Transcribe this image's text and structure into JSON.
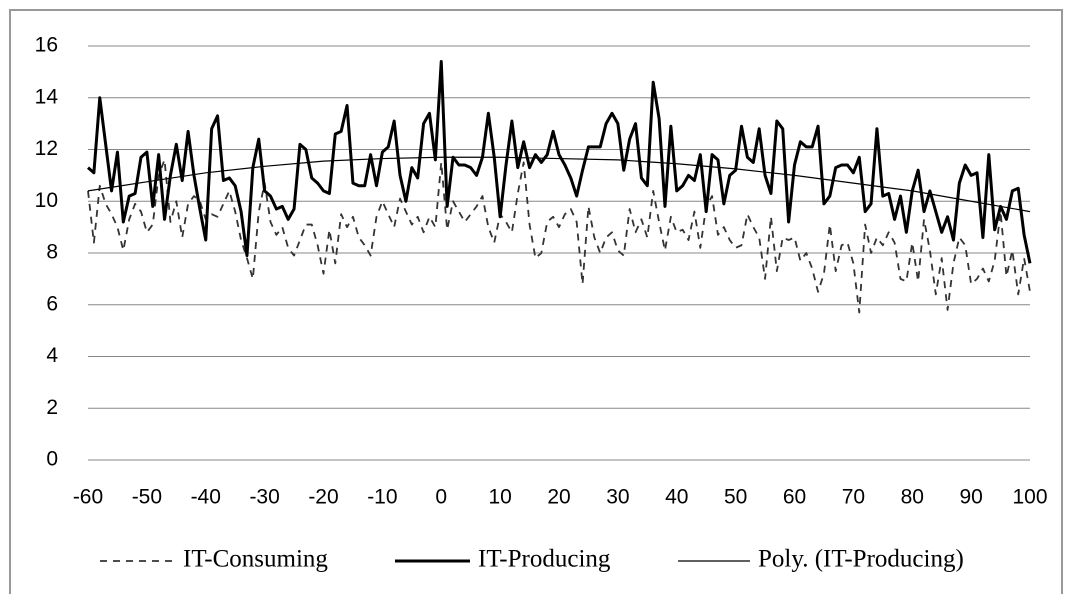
{
  "chart_data": {
    "type": "line",
    "x": [
      -60,
      -59,
      -58,
      -57,
      -56,
      -55,
      -54,
      -53,
      -52,
      -51,
      -50,
      -49,
      -48,
      -47,
      -46,
      -45,
      -44,
      -43,
      -42,
      -41,
      -40,
      -39,
      -38,
      -37,
      -36,
      -35,
      -34,
      -33,
      -32,
      -31,
      -30,
      -29,
      -28,
      -27,
      -26,
      -25,
      -24,
      -23,
      -22,
      -21,
      -20,
      -19,
      -18,
      -17,
      -16,
      -15,
      -14,
      -13,
      -12,
      -11,
      -10,
      -9,
      -8,
      -7,
      -6,
      -5,
      -4,
      -3,
      -2,
      -1,
      0,
      1,
      2,
      3,
      4,
      5,
      6,
      7,
      8,
      9,
      10,
      11,
      12,
      13,
      14,
      15,
      16,
      17,
      18,
      19,
      20,
      21,
      22,
      23,
      24,
      25,
      26,
      27,
      28,
      29,
      30,
      31,
      32,
      33,
      34,
      35,
      36,
      37,
      38,
      39,
      40,
      41,
      42,
      43,
      44,
      45,
      46,
      47,
      48,
      49,
      50,
      51,
      52,
      53,
      54,
      55,
      56,
      57,
      58,
      59,
      60,
      61,
      62,
      63,
      64,
      65,
      66,
      67,
      68,
      69,
      70,
      71,
      72,
      73,
      74,
      75,
      76,
      77,
      78,
      79,
      80,
      81,
      82,
      83,
      84,
      85,
      86,
      87,
      88,
      89,
      90,
      91,
      92,
      93,
      94,
      95,
      96,
      97,
      98,
      99,
      100
    ],
    "series": [
      {
        "name": "IT-Consuming",
        "color": "#333333",
        "style": "dashed",
        "width": 1.8,
        "values": [
          10.4,
          8.4,
          10.6,
          9.9,
          9.5,
          9.0,
          8.1,
          9.3,
          9.9,
          9.6,
          8.8,
          9.1,
          11.0,
          11.6,
          9.2,
          10.0,
          8.6,
          9.9,
          10.2,
          10.0,
          9.3,
          9.5,
          9.4,
          9.9,
          10.4,
          9.6,
          8.5,
          7.8,
          7.0,
          9.6,
          10.7,
          9.2,
          8.7,
          9.0,
          8.2,
          7.9,
          8.5,
          9.1,
          9.1,
          8.3,
          7.2,
          8.9,
          7.6,
          9.5,
          9.0,
          9.4,
          8.6,
          8.3,
          7.9,
          9.4,
          10.0,
          9.5,
          9.0,
          10.1,
          9.6,
          9.1,
          9.4,
          8.8,
          9.4,
          9.0,
          11.5,
          8.9,
          10.0,
          9.6,
          9.2,
          9.5,
          9.8,
          10.2,
          9.0,
          8.4,
          9.5,
          9.2,
          8.8,
          10.3,
          11.5,
          9.1,
          7.8,
          8.0,
          9.2,
          9.4,
          9.0,
          9.5,
          9.7,
          9.2,
          6.8,
          9.8,
          8.6,
          8.0,
          8.6,
          8.8,
          8.1,
          7.9,
          9.7,
          8.8,
          9.3,
          8.6,
          10.4,
          9.2,
          8.1,
          9.4,
          8.8,
          8.9,
          8.5,
          9.6,
          8.2,
          9.8,
          10.2,
          8.7,
          9.0,
          8.5,
          8.2,
          8.3,
          9.5,
          9.0,
          8.6,
          7.0,
          9.4,
          7.3,
          8.6,
          8.5,
          8.6,
          7.7,
          8.0,
          7.4,
          6.5,
          7.2,
          9.1,
          7.3,
          8.3,
          8.4,
          7.6,
          5.7,
          9.1,
          8.0,
          8.6,
          8.3,
          8.8,
          8.4,
          7.0,
          6.9,
          8.4,
          6.9,
          9.3,
          8.1,
          6.4,
          7.8,
          5.8,
          7.6,
          8.6,
          8.3,
          6.8,
          7.0,
          7.4,
          6.9,
          7.7,
          9.6,
          7.1,
          8.1,
          6.4,
          7.8,
          6.5
        ]
      },
      {
        "name": "IT-Producing",
        "color": "#000000",
        "style": "solid",
        "width": 3,
        "values": [
          11.3,
          11.1,
          14.0,
          12.2,
          10.4,
          11.9,
          9.2,
          10.2,
          10.3,
          11.7,
          11.9,
          9.8,
          11.8,
          9.3,
          11.0,
          12.2,
          10.8,
          12.7,
          11.0,
          9.7,
          8.5,
          12.8,
          13.3,
          10.8,
          10.9,
          10.6,
          9.6,
          7.9,
          11.3,
          12.4,
          10.4,
          10.2,
          9.7,
          9.8,
          9.3,
          9.7,
          12.2,
          12.0,
          10.9,
          10.7,
          10.4,
          10.3,
          12.6,
          12.7,
          13.7,
          10.7,
          10.6,
          10.6,
          11.8,
          10.6,
          11.9,
          12.1,
          13.1,
          11.0,
          10.0,
          11.3,
          10.9,
          13.0,
          13.4,
          11.6,
          15.4,
          9.8,
          11.7,
          11.4,
          11.4,
          11.3,
          11.0,
          11.7,
          13.4,
          11.7,
          9.4,
          11.4,
          13.1,
          11.3,
          12.3,
          11.3,
          11.8,
          11.5,
          11.8,
          12.7,
          11.8,
          11.4,
          10.9,
          10.2,
          11.2,
          12.1,
          12.1,
          12.1,
          13.0,
          13.4,
          13.0,
          11.2,
          12.4,
          13.0,
          10.9,
          10.6,
          14.6,
          13.2,
          9.8,
          12.9,
          10.4,
          10.6,
          11.0,
          10.8,
          11.8,
          9.6,
          11.8,
          11.6,
          9.9,
          11.0,
          11.2,
          12.9,
          11.7,
          11.5,
          12.8,
          11.0,
          10.3,
          13.1,
          12.8,
          9.2,
          11.4,
          12.3,
          12.1,
          12.1,
          12.9,
          9.9,
          10.2,
          11.3,
          11.4,
          11.4,
          11.1,
          11.7,
          9.6,
          9.9,
          12.8,
          10.2,
          10.3,
          9.3,
          10.2,
          8.8,
          10.4,
          11.2,
          9.6,
          10.4,
          9.6,
          8.8,
          9.4,
          8.5,
          10.7,
          11.4,
          11.0,
          11.1,
          8.6,
          11.8,
          8.9,
          9.8,
          9.3,
          10.4,
          10.5,
          8.7,
          7.6
        ]
      },
      {
        "name": "Poly. (IT-Producing)",
        "color": "#000000",
        "style": "solid",
        "width": 1.2,
        "x": [
          -60,
          -50,
          -40,
          -30,
          -20,
          -10,
          0,
          10,
          20,
          30,
          40,
          50,
          60,
          70,
          80,
          90,
          100
        ],
        "values": [
          10.4,
          10.75,
          11.1,
          11.35,
          11.55,
          11.65,
          11.7,
          11.7,
          11.65,
          11.6,
          11.45,
          11.25,
          11.0,
          10.7,
          10.4,
          10.0,
          9.6
        ]
      }
    ],
    "xlim": [
      -60,
      100
    ],
    "xticks": [
      -60,
      -50,
      -40,
      -30,
      -20,
      -10,
      0,
      10,
      20,
      30,
      40,
      50,
      60,
      70,
      80,
      90,
      100
    ],
    "ylim": [
      0,
      16
    ],
    "yticks": [
      0,
      2,
      4,
      6,
      8,
      10,
      12,
      14,
      16
    ],
    "grid": true,
    "legend": "bottom"
  }
}
